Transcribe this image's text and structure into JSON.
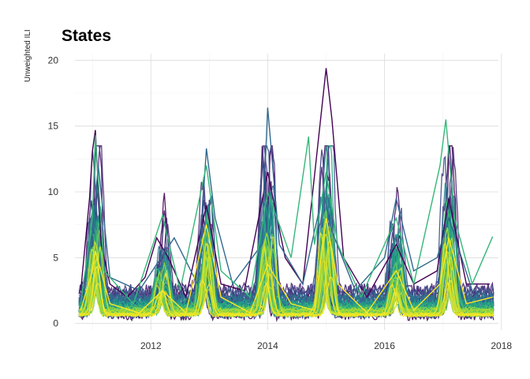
{
  "chart_data": {
    "type": "line",
    "title": "States",
    "xlabel": "",
    "ylabel": "Unweighted ILI",
    "xlim": [
      2010.7,
      2017.95
    ],
    "ylim": [
      -0.5,
      20.5
    ],
    "x_ticks": [
      2012,
      2014,
      2016,
      2018
    ],
    "y_ticks": [
      0,
      5,
      10,
      15,
      20
    ],
    "grid": true,
    "legend": "none",
    "colormap": "viridis",
    "series_count": 54,
    "season_peaks": [
      {
        "x": 2011.05,
        "max": 14.7
      },
      {
        "x": 2012.2,
        "max": 8.2
      },
      {
        "x": 2012.95,
        "max": 13.3
      },
      {
        "x": 2014.0,
        "max": 16.4
      },
      {
        "x": 2015.0,
        "max": 19.4
      },
      {
        "x": 2016.2,
        "max": 9.5
      },
      {
        "x": 2017.1,
        "max": 15.5
      }
    ],
    "highlight_series": [
      {
        "color": "#440154",
        "points": [
          [
            2010.8,
            2.5
          ],
          [
            2010.95,
            9.5
          ],
          [
            2011.0,
            13.1
          ],
          [
            2011.05,
            14.7
          ],
          [
            2011.15,
            6.0
          ],
          [
            2011.3,
            3.0
          ],
          [
            2011.6,
            2.0
          ],
          [
            2011.9,
            3.5
          ],
          [
            2012.1,
            6.5
          ],
          [
            2012.3,
            5.0
          ],
          [
            2012.6,
            2.0
          ],
          [
            2012.95,
            9.0
          ],
          [
            2013.2,
            3.0
          ],
          [
            2013.6,
            2.5
          ],
          [
            2014.0,
            11.5
          ],
          [
            2014.3,
            5.0
          ],
          [
            2014.6,
            3.0
          ],
          [
            2015.0,
            19.4
          ],
          [
            2015.1,
            15.5
          ],
          [
            2015.3,
            5.0
          ],
          [
            2015.7,
            2.0
          ],
          [
            2016.2,
            6.0
          ],
          [
            2016.5,
            3.0
          ],
          [
            2016.9,
            4.0
          ],
          [
            2017.1,
            9.5
          ],
          [
            2017.4,
            3.0
          ],
          [
            2017.8,
            3.0
          ]
        ]
      },
      {
        "color": "#31688e",
        "points": [
          [
            2010.8,
            2.0
          ],
          [
            2011.0,
            7.0
          ],
          [
            2011.1,
            12.0
          ],
          [
            2011.3,
            3.5
          ],
          [
            2011.8,
            2.5
          ],
          [
            2012.4,
            6.5
          ],
          [
            2012.8,
            3.0
          ],
          [
            2012.95,
            13.3
          ],
          [
            2013.1,
            8.0
          ],
          [
            2013.4,
            3.0
          ],
          [
            2013.9,
            6.0
          ],
          [
            2014.0,
            16.4
          ],
          [
            2014.2,
            6.0
          ],
          [
            2014.6,
            3.0
          ],
          [
            2014.95,
            10.0
          ],
          [
            2015.1,
            7.0
          ],
          [
            2015.5,
            2.5
          ],
          [
            2016.0,
            5.0
          ],
          [
            2016.2,
            9.5
          ],
          [
            2016.5,
            4.0
          ],
          [
            2016.9,
            5.0
          ],
          [
            2017.1,
            8.0
          ],
          [
            2017.5,
            2.5
          ],
          [
            2017.85,
            2.0
          ]
        ]
      },
      {
        "color": "#35b779",
        "points": [
          [
            2010.8,
            1.5
          ],
          [
            2011.0,
            8.0
          ],
          [
            2011.05,
            14.3
          ],
          [
            2011.2,
            4.0
          ],
          [
            2011.7,
            1.5
          ],
          [
            2012.2,
            8.2
          ],
          [
            2012.5,
            2.5
          ],
          [
            2012.95,
            12.0
          ],
          [
            2013.2,
            4.0
          ],
          [
            2013.7,
            2.0
          ],
          [
            2014.0,
            10.0
          ],
          [
            2014.4,
            5.0
          ],
          [
            2014.7,
            14.2
          ],
          [
            2014.8,
            6.0
          ],
          [
            2015.0,
            11.5
          ],
          [
            2015.2,
            6.0
          ],
          [
            2015.6,
            2.0
          ],
          [
            2016.2,
            8.0
          ],
          [
            2016.5,
            3.0
          ],
          [
            2016.95,
            12.0
          ],
          [
            2017.05,
            15.5
          ],
          [
            2017.2,
            8.0
          ],
          [
            2017.5,
            3.0
          ],
          [
            2017.85,
            6.6
          ]
        ]
      },
      {
        "color": "#fde725",
        "points": [
          [
            2010.8,
            1.0
          ],
          [
            2011.0,
            4.0
          ],
          [
            2011.05,
            5.5
          ],
          [
            2011.3,
            1.5
          ],
          [
            2011.8,
            0.8
          ],
          [
            2012.2,
            2.5
          ],
          [
            2012.6,
            0.8
          ],
          [
            2012.95,
            7.5
          ],
          [
            2013.2,
            2.0
          ],
          [
            2013.7,
            0.8
          ],
          [
            2014.0,
            4.5
          ],
          [
            2014.4,
            1.5
          ],
          [
            2014.8,
            1.0
          ],
          [
            2015.0,
            8.0
          ],
          [
            2015.2,
            3.0
          ],
          [
            2015.7,
            0.8
          ],
          [
            2016.2,
            4.0
          ],
          [
            2016.5,
            1.0
          ],
          [
            2016.95,
            3.0
          ],
          [
            2017.1,
            6.5
          ],
          [
            2017.4,
            1.5
          ],
          [
            2017.85,
            2.0
          ]
        ]
      }
    ]
  }
}
